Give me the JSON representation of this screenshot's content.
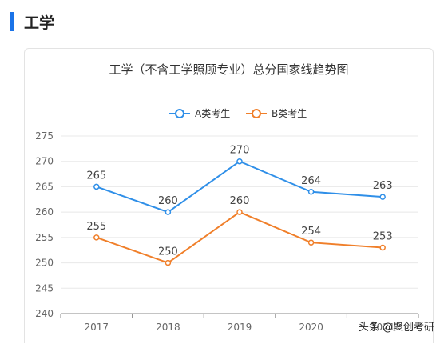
{
  "section": {
    "title": "工学"
  },
  "chart_data": {
    "type": "line",
    "title": "工学（不含工学照顾专业）总分国家线趋势图",
    "categories": [
      "2017",
      "2018",
      "2019",
      "2020",
      "2021"
    ],
    "series": [
      {
        "name": "A类考生",
        "color": "#2f8fe8",
        "values": [
          265,
          260,
          270,
          264,
          263
        ]
      },
      {
        "name": "B类考生",
        "color": "#f07f2a",
        "values": [
          255,
          250,
          260,
          254,
          253
        ]
      }
    ],
    "ylim": [
      240,
      275
    ],
    "yticks": [
      240,
      245,
      250,
      255,
      260,
      265,
      270,
      275
    ],
    "grid": true,
    "legend_position": "top-center",
    "data_labels": true
  },
  "attribution": "头条 @聚创考研"
}
